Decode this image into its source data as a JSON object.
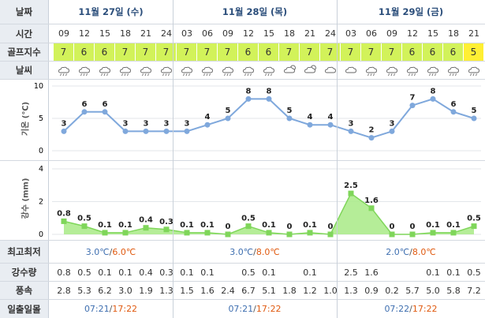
{
  "labels": {
    "date": "날짜",
    "time": "시간",
    "golf": "골프지수",
    "weather": "날씨",
    "temp_axis": "기온 (℃)",
    "rain_axis": "강수 (mm)",
    "lowhigh": "최고최저",
    "precip": "강수량",
    "wind": "풍속",
    "sun": "일출일몰"
  },
  "days": [
    {
      "label": "11월 27일 (수)",
      "low": "3.0℃",
      "high": "6.0℃",
      "sunrise": "07:21",
      "sunset": "17:22"
    },
    {
      "label": "11월 28일 (목)",
      "low": "3.0℃",
      "high": "8.0℃",
      "sunrise": "07:21",
      "sunset": "17:22"
    },
    {
      "label": "11월 29일 (금)",
      "low": "2.0℃",
      "high": "8.0℃",
      "sunrise": "07:22",
      "sunset": "17:22"
    }
  ],
  "slash": "/",
  "times": [
    "09",
    "12",
    "15",
    "18",
    "21",
    "24",
    "03",
    "06",
    "09",
    "12",
    "15",
    "18",
    "21",
    "24",
    "03",
    "06",
    "09",
    "12",
    "15",
    "18",
    "21"
  ],
  "golf_index": [
    "7",
    "6",
    "6",
    "7",
    "7",
    "7",
    "7",
    "7",
    "7",
    "6",
    "6",
    "7",
    "7",
    "7",
    "7",
    "7",
    "7",
    "6",
    "6",
    "6",
    "5"
  ],
  "weather_icons": [
    "rain-cloud-icon",
    "rain-cloud-icon",
    "rain-cloud-icon",
    "rain-cloud-icon",
    "rain-cloud-icon",
    "rain-cloud-icon",
    "rain-cloud-icon",
    "rain-cloud-icon",
    "rain-cloud-icon",
    "rain-cloud-icon",
    "rain-cloud-icon",
    "cloud-sun-icon",
    "cloud-sun-icon",
    "cloud-icon",
    "cloud-icon",
    "rain-cloud-icon",
    "rain-cloud-icon",
    "rain-cloud-icon",
    "rain-cloud-icon",
    "rain-cloud-icon",
    "rain-cloud-icon"
  ],
  "precip": [
    "0.8",
    "0.5",
    "0.1",
    "0.1",
    "0.4",
    "0.3",
    "0.1",
    "0.1",
    "",
    "0.5",
    "0.1",
    "",
    "0.1",
    "",
    "2.5",
    "1.6",
    "",
    "",
    "0.1",
    "0.1",
    "0.5"
  ],
  "wind": [
    "2.8",
    "5.3",
    "6.2",
    "3.0",
    "1.9",
    "1.3",
    "1.5",
    "1.6",
    "2.4",
    "6.7",
    "5.1",
    "1.8",
    "1.2",
    "1.0",
    "1.3",
    "0.9",
    "0.2",
    "5.7",
    "5.0",
    "5.8",
    "7.2"
  ],
  "chart_data": [
    {
      "type": "line",
      "ylabel": "기온 (℃)",
      "ylim": [
        0,
        10
      ],
      "yticks": [
        0,
        5,
        10
      ],
      "values": [
        3,
        6,
        6,
        3,
        3,
        3,
        3,
        4,
        5,
        8,
        8,
        5,
        4,
        4,
        3,
        2,
        3,
        7,
        8,
        6,
        5
      ],
      "color": "#7fa8dc"
    },
    {
      "type": "area",
      "ylabel": "강수 (mm)",
      "ylim": [
        0,
        4
      ],
      "yticks": [
        0,
        2,
        4
      ],
      "values": [
        0.8,
        0.5,
        0.1,
        0.1,
        0.4,
        0.3,
        0.1,
        0.1,
        0,
        0.5,
        0.1,
        0,
        0.1,
        0,
        2.5,
        1.6,
        0,
        0,
        0.1,
        0.1,
        0.5
      ],
      "labels": [
        "0.8",
        "0.5",
        "0.1",
        "0.1",
        "0.4",
        "0.3",
        "0.1",
        "0.1",
        "0",
        "0.5",
        "0.1",
        "0",
        "0.1",
        "0",
        "2.5",
        "1.6",
        "0",
        "0",
        "0.1",
        "0.1",
        "0.5"
      ],
      "color": "#7fd65a"
    }
  ]
}
